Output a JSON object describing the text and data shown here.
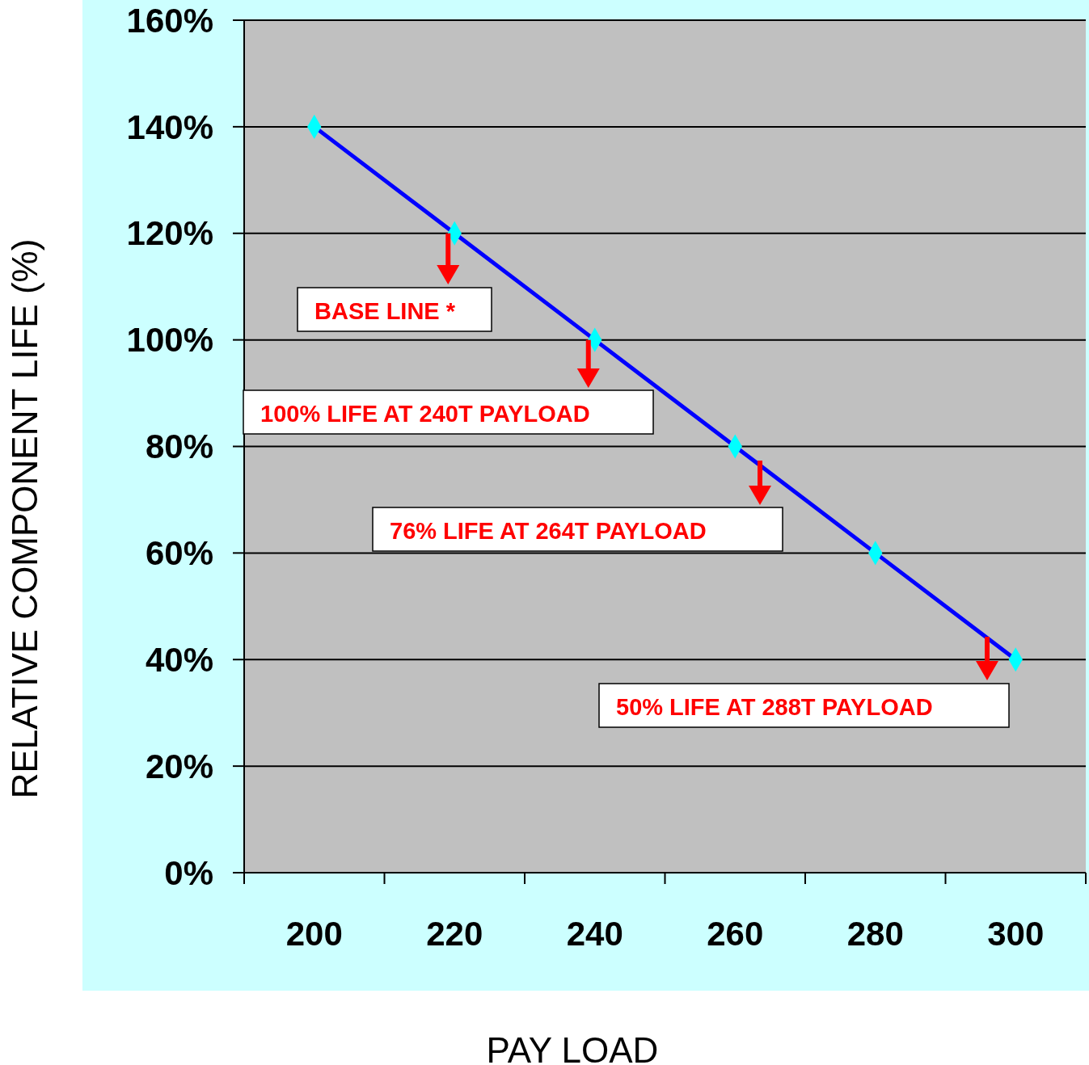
{
  "chart_data": {
    "type": "line",
    "xlabel": "PAY LOAD",
    "ylabel": "RELATIVE COMPONENT LIFE (%)",
    "categories": [
      "200",
      "220",
      "240",
      "260",
      "280",
      "300"
    ],
    "series": [
      {
        "color": "#0000ff",
        "values": [
          140,
          120,
          100,
          80,
          60,
          40
        ]
      }
    ],
    "marker": "diamond",
    "line_style": "solid",
    "grid": "y",
    "ylim": [
      0,
      160
    ],
    "yticks": [
      {
        "value": 0,
        "label": "0%"
      },
      {
        "value": 20,
        "label": "20%"
      },
      {
        "value": 40,
        "label": "40%"
      },
      {
        "value": 60,
        "label": "60%"
      },
      {
        "value": 80,
        "label": "80%"
      },
      {
        "value": 100,
        "label": "100%"
      },
      {
        "value": 120,
        "label": "120%"
      },
      {
        "value": 140,
        "label": "140%"
      },
      {
        "value": 160,
        "label": "160%"
      }
    ],
    "annotations": [
      {
        "text": "BASE LINE *",
        "x": "220",
        "y": 120
      },
      {
        "text": "100% LIFE AT 240T PAYLOAD",
        "x": "240",
        "y": 100
      },
      "76% LIFE AT 264T PAYLOAD",
      "50% LIFE AT 288T PAYLOAD"
    ]
  }
}
